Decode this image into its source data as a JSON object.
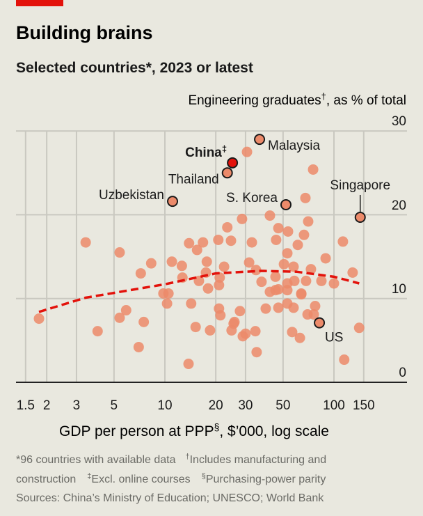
{
  "header": {
    "title": "Building brains",
    "subtitle": "Selected countries*, 2023 or latest",
    "accent_color": "#e3120b"
  },
  "chart_data": {
    "type": "scatter",
    "title": "Building brains",
    "subtitle": "Selected countries*, 2023 or latest",
    "ylabel": "Engineering graduates",
    "ylabel_mark": "†",
    "ylabel_suffix": ", as % of total",
    "xlabel": "GDP per person at PPP",
    "xlabel_mark": "§",
    "xlabel_suffix": ", $’000, log scale",
    "x_scale": "log",
    "xlim": [
      1.5,
      150
    ],
    "ylim": [
      0,
      30
    ],
    "x_ticks": [
      "1.5",
      "2",
      "3",
      "5",
      "10",
      "20",
      "30",
      "50",
      "100",
      "150"
    ],
    "y_ticks": [
      "0",
      "10",
      "20",
      "30"
    ],
    "grid": true,
    "point_color": "#ec8a6a",
    "highlight_color": "#e3120b",
    "trend_color": "#e3120b",
    "trend": [
      [
        1.8,
        8.4
      ],
      [
        3.4,
        10.1
      ],
      [
        10,
        11.7
      ],
      [
        20,
        13.0
      ],
      [
        37,
        13.3
      ],
      [
        60,
        13.2
      ],
      [
        100,
        12.6
      ],
      [
        141,
        11.8
      ]
    ],
    "labelled_points": [
      {
        "label": "China",
        "mark": "‡",
        "x": 25.1,
        "y": 26.2,
        "highlight": true
      },
      {
        "label": "Malaysia",
        "x": 36.3,
        "y": 29.0
      },
      {
        "label": "Thailand",
        "x": 23.4,
        "y": 25.0
      },
      {
        "label": "Uzbekistan",
        "x": 11.1,
        "y": 21.6
      },
      {
        "label": "S. Korea",
        "x": 52,
        "y": 21.2
      },
      {
        "label": "Singapore",
        "x": 143,
        "y": 19.7
      },
      {
        "label": "US",
        "x": 82,
        "y": 7.1
      }
    ],
    "points": [
      [
        3.4,
        16.7
      ],
      [
        5.4,
        15.5
      ],
      [
        8.3,
        14.2
      ],
      [
        7.2,
        13.0
      ],
      [
        11,
        14.4
      ],
      [
        12.6,
        13.9
      ],
      [
        12.7,
        12.5
      ],
      [
        13.9,
        16.6
      ],
      [
        15.5,
        15.8
      ],
      [
        16.8,
        16.7
      ],
      [
        17.7,
        14.4
      ],
      [
        17.5,
        13.1
      ],
      [
        15.9,
        12.1
      ],
      [
        18,
        11.2
      ],
      [
        9.8,
        10.6
      ],
      [
        10.5,
        10.6
      ],
      [
        10.3,
        9.4
      ],
      [
        14.3,
        9.4
      ],
      [
        5.9,
        8.6
      ],
      [
        5.4,
        7.7
      ],
      [
        1.8,
        7.6
      ],
      [
        7.5,
        7.2
      ],
      [
        4.0,
        6.1
      ],
      [
        15.2,
        6.6
      ],
      [
        18.5,
        6.2
      ],
      [
        7.0,
        4.2
      ],
      [
        13.8,
        2.2
      ],
      [
        30.6,
        27.5
      ],
      [
        75.3,
        25.4
      ],
      [
        67.8,
        22.0
      ],
      [
        41.8,
        19.9
      ],
      [
        28.6,
        19.5
      ],
      [
        23.4,
        18.5
      ],
      [
        46.9,
        18.4
      ],
      [
        53.5,
        18.0
      ],
      [
        70.4,
        19.2
      ],
      [
        66.5,
        17.6
      ],
      [
        20.7,
        17.0
      ],
      [
        24.6,
        16.9
      ],
      [
        32.7,
        16.7
      ],
      [
        45.5,
        17.0
      ],
      [
        61.1,
        16.4
      ],
      [
        113,
        16.8
      ],
      [
        53,
        15.4
      ],
      [
        89.3,
        14.8
      ],
      [
        31.5,
        14.3
      ],
      [
        50.6,
        14.1
      ],
      [
        57.7,
        13.8
      ],
      [
        73.1,
        13.5
      ],
      [
        129,
        13.1
      ],
      [
        22.4,
        13.8
      ],
      [
        34.6,
        13.4
      ],
      [
        45.1,
        12.6
      ],
      [
        21.1,
        12.5
      ],
      [
        37.3,
        12.0
      ],
      [
        58.3,
        12.1
      ],
      [
        68.4,
        12.1
      ],
      [
        84.3,
        12.1
      ],
      [
        100,
        11.8
      ],
      [
        20.9,
        11.6
      ],
      [
        53,
        11.8
      ],
      [
        41.8,
        10.8
      ],
      [
        45.1,
        11.0
      ],
      [
        46.9,
        11.1
      ],
      [
        53,
        11.0
      ],
      [
        64.1,
        10.6
      ],
      [
        64.1,
        10.5
      ],
      [
        20.9,
        8.8
      ],
      [
        21.3,
        8.0
      ],
      [
        27.8,
        8.5
      ],
      [
        39.5,
        8.8
      ],
      [
        46.9,
        8.9
      ],
      [
        53,
        9.4
      ],
      [
        57.7,
        8.9
      ],
      [
        77.4,
        9.1
      ],
      [
        69.8,
        8.1
      ],
      [
        76,
        8.1
      ],
      [
        25.8,
        7.2
      ],
      [
        25.5,
        7.0
      ],
      [
        24.8,
        6.2
      ],
      [
        28.9,
        5.5
      ],
      [
        30,
        5.8
      ],
      [
        34.3,
        6.1
      ],
      [
        56.6,
        6.0
      ],
      [
        62.9,
        5.3
      ],
      [
        141,
        6.5
      ],
      [
        34.9,
        3.6
      ],
      [
        115,
        2.7
      ]
    ]
  },
  "footnotes": {
    "line1_a": "*96 countries with available data",
    "line1_mark": "†",
    "line1_b": "Includes manufacturing and",
    "line2_a": "construction",
    "line2_mark1": "‡",
    "line2_b": "Excl. online courses",
    "line2_mark2": "§",
    "line2_c": "Purchasing-power parity",
    "sources": "Sources: China’s Ministry of Education; UNESCO; World Bank"
  }
}
